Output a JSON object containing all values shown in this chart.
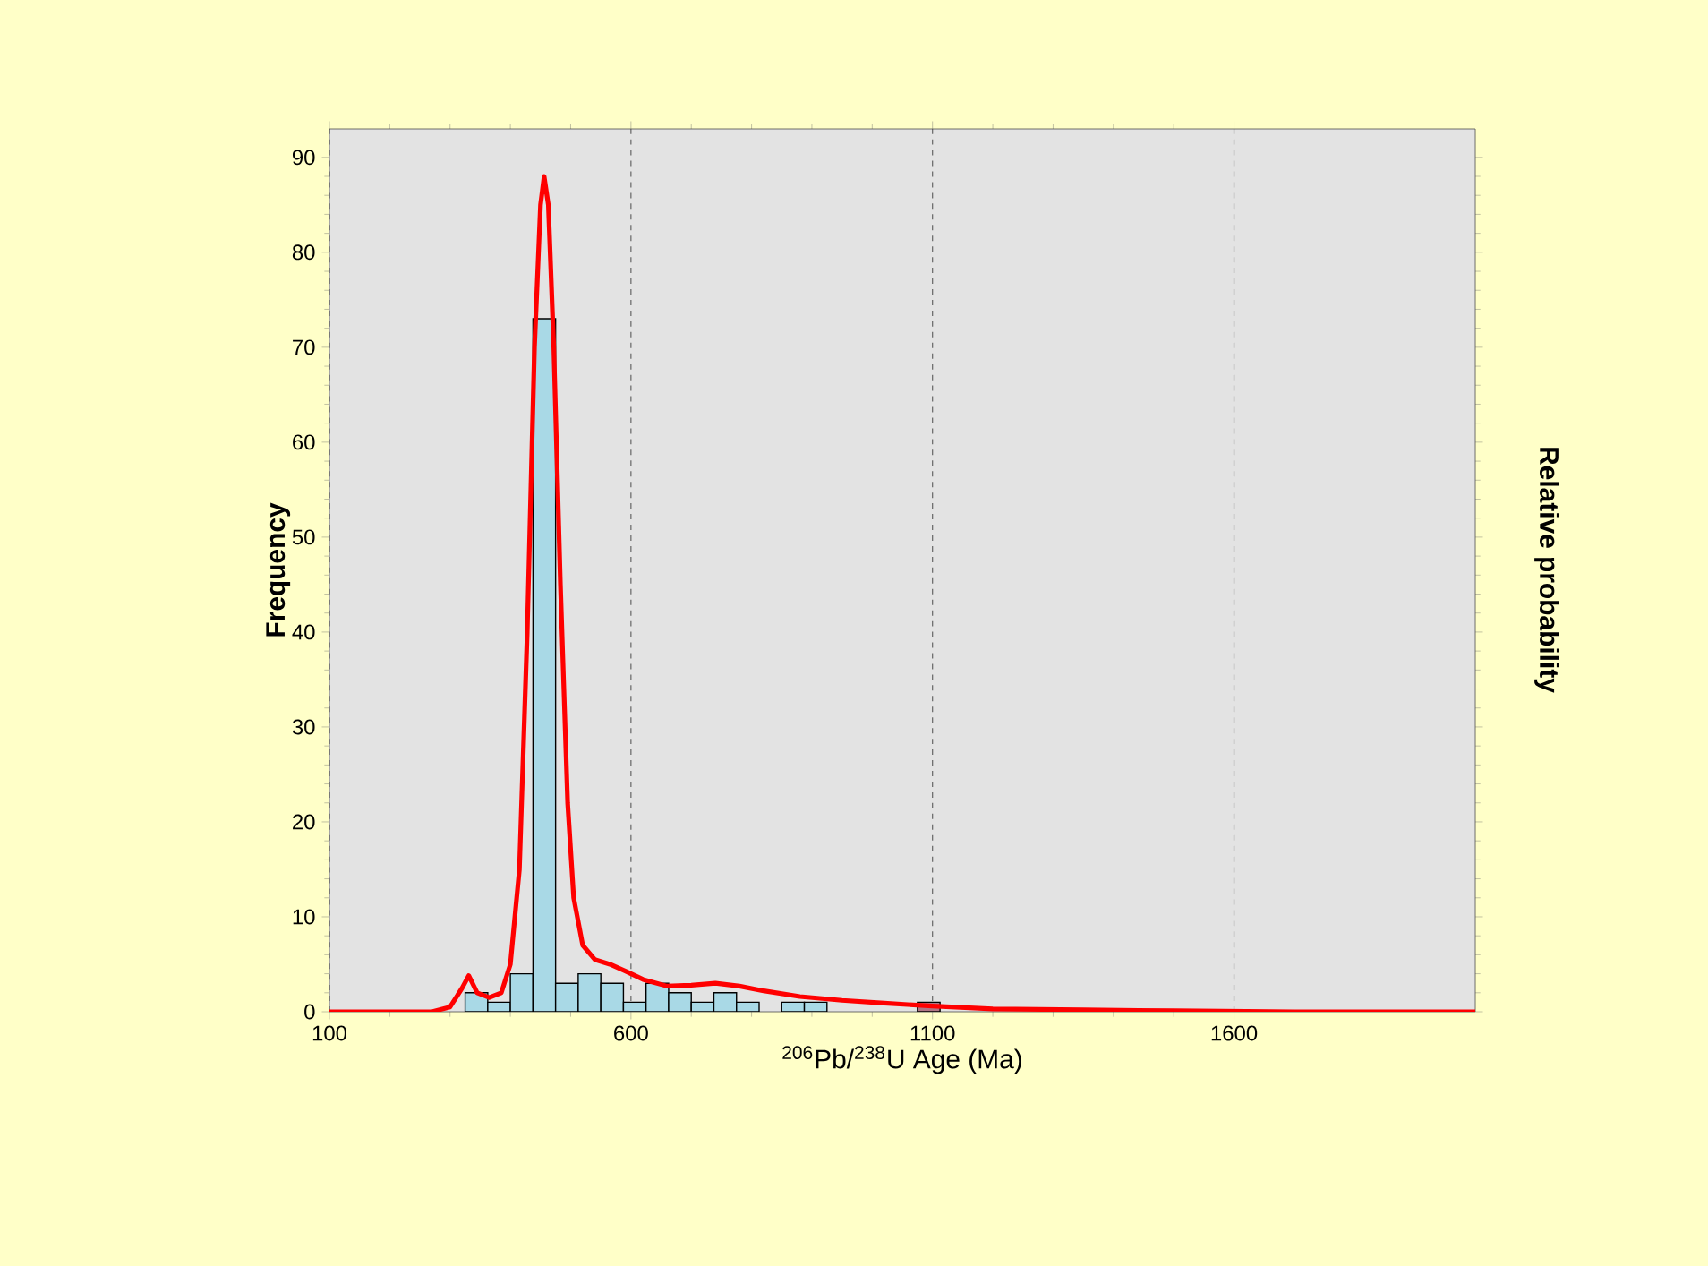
{
  "chart_data": {
    "type": "histogram",
    "xlabel": "$^{206}$Pb/$^{238}$U Age (Ma)",
    "ylabel": "Frequency",
    "y2label": "Relative probability",
    "bins": [
      325,
      362.5,
      400,
      437.5,
      475,
      512.5,
      550,
      587.5,
      625,
      662.5,
      700,
      737.5,
      775,
      812.5,
      850,
      887.5,
      925,
      962.5,
      1000,
      1037.5,
      1075,
      1112.5
    ],
    "xlim": [
      100,
      2000
    ],
    "xticks": [
      100,
      600,
      1100,
      1600
    ],
    "ylim": [
      0,
      93
    ],
    "yticks": [
      0,
      10,
      20,
      30,
      40,
      50,
      60,
      70,
      80,
      90
    ],
    "grid": "x",
    "series": [
      {
        "values": [
          2,
          1,
          4,
          73,
          3,
          4,
          3,
          1,
          3,
          2,
          1,
          2,
          1,
          0,
          1,
          1,
          0,
          0,
          0,
          0,
          1
        ],
        "colors": [
          "#a9d9e6",
          "#a9d9e6",
          "#a9d9e6",
          "#a9d9e6",
          "#a9d9e6",
          "#a9d9e6",
          "#a9d9e6",
          "#a9d9e6",
          "#a9d9e6",
          "#a9d9e6",
          "#a9d9e6",
          "#a9d9e6",
          "#a9d9e6",
          "#a9d9e6",
          "#a9d9e6",
          "#a9d9e6",
          "#a9d9e6",
          "#a9d9e6",
          "#a9d9e6",
          "#a9d9e6",
          "#b07585"
        ]
      },
      {
        "type": "line",
        "color": "#ff0000",
        "x": [
          100,
          270,
          300,
          320,
          331,
          345,
          365,
          385,
          400,
          415,
          428,
          440,
          450,
          456,
          463,
          472,
          483,
          495,
          505,
          520,
          540,
          565,
          590,
          620,
          660,
          700,
          740,
          780,
          820,
          880,
          950,
          1020,
          1100,
          1200,
          1350,
          1500,
          1700,
          2000
        ],
        "values": [
          0,
          0,
          0.5,
          2.5,
          3.8,
          2,
          1.5,
          2,
          5,
          15,
          40,
          70,
          85,
          88,
          85,
          70,
          45,
          22,
          12,
          7,
          5.5,
          5,
          4.3,
          3.4,
          2.7,
          2.8,
          3.0,
          2.7,
          2.2,
          1.6,
          1.2,
          0.9,
          0.6,
          0.3,
          0.2,
          0.1,
          0,
          0
        ]
      }
    ]
  }
}
